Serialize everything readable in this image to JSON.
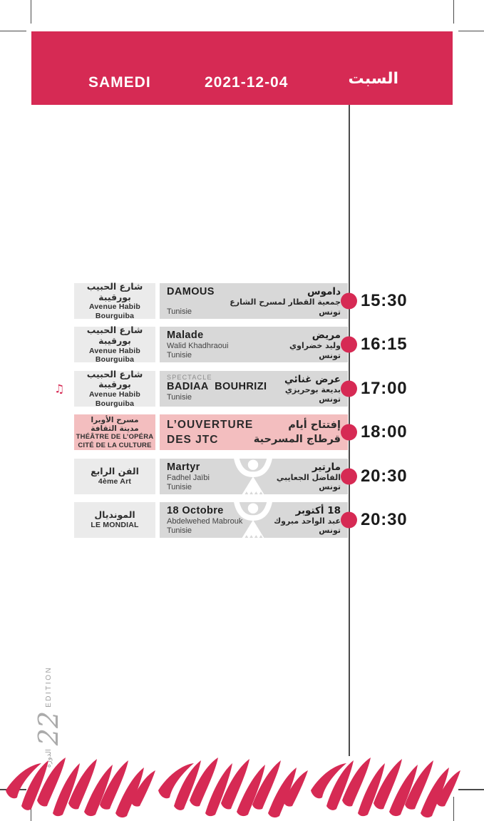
{
  "header": {
    "day_fr": "SAMEDI",
    "date": "2021-12-04",
    "day_ar": "السبت"
  },
  "edition": {
    "label_ar": "الدورة",
    "number": "22",
    "label_fr": "EDITION"
  },
  "icons": {
    "music_note": "♫",
    "timeline_dot": "red-dot",
    "watermark": "jtc-figure-logo"
  },
  "colors": {
    "crimson": "#D62A54",
    "highlight_pink": "#F3BEBF",
    "event_gray": "#D8D8D8",
    "venue_gray": "#EBEBEB"
  },
  "events": [
    {
      "time": "15:30",
      "music_icon": false,
      "highlight": false,
      "logo_watermark": false,
      "venue": {
        "ar": [
          "شارع الحبيب بورقيبة"
        ],
        "fr": [
          "Avenue Habib Bourguiba"
        ]
      },
      "latin": {
        "overline": "",
        "title": [
          "DAMOUS"
        ],
        "author": "",
        "country": "Tunisie"
      },
      "arabic": {
        "title": [
          "داموس"
        ],
        "author": "جمعية القطار لمسرح الشارع",
        "country": "تونس"
      }
    },
    {
      "time": "16:15",
      "music_icon": false,
      "highlight": false,
      "logo_watermark": false,
      "venue": {
        "ar": [
          "شارع الحبيب بورقيبة"
        ],
        "fr": [
          "Avenue Habib Bourguiba"
        ]
      },
      "latin": {
        "overline": "",
        "title": [
          "Malade"
        ],
        "author": "Walid Khadhraoui",
        "country": "Tunisie"
      },
      "arabic": {
        "title": [
          "مريض"
        ],
        "author": "وليد خضراوي",
        "country": "تونس"
      }
    },
    {
      "time": "17:00",
      "music_icon": true,
      "highlight": false,
      "logo_watermark": false,
      "venue": {
        "ar": [
          "شارع الحبيب بورقيبة"
        ],
        "fr": [
          "Avenue Habib Bourguiba"
        ]
      },
      "latin": {
        "overline": "SPECTACLE",
        "title": [
          "BADIAA  BOUHRIZI"
        ],
        "author": "",
        "country": "Tunisie"
      },
      "arabic": {
        "title": [
          "عرض غنائي"
        ],
        "author": "بديعة بوحريزي",
        "country": "تونس"
      }
    },
    {
      "time": "18:00",
      "music_icon": false,
      "highlight": true,
      "logo_watermark": false,
      "venue": {
        "ar": [
          "مسرح الأوبرا",
          "مدينة الثقافة"
        ],
        "fr": [
          "THÉÂTRE DE L’OPÉRA",
          "CITÉ DE LA CULTURE"
        ]
      },
      "latin": {
        "overline": "",
        "title": [
          "L’OUVERTURE",
          "DES JTC"
        ],
        "author": "",
        "country": ""
      },
      "arabic": {
        "title": [
          "إفتتاح أيام",
          "قرطاج المسرحية"
        ],
        "author": "",
        "country": ""
      }
    },
    {
      "time": "20:30",
      "music_icon": false,
      "highlight": false,
      "logo_watermark": true,
      "venue": {
        "ar": [
          "الفن الرابع"
        ],
        "fr": [
          "4ème Art"
        ]
      },
      "latin": {
        "overline": "",
        "title": [
          "Martyr"
        ],
        "author": "Fadhel Jaïbi",
        "country": "Tunisie"
      },
      "arabic": {
        "title": [
          "مارتير"
        ],
        "author": "الفاضل الجعايبي",
        "country": "تونس"
      }
    },
    {
      "time": "20:30",
      "music_icon": false,
      "highlight": false,
      "logo_watermark": true,
      "venue": {
        "ar": [
          "المونديال"
        ],
        "fr": [
          "LE MONDIAL"
        ]
      },
      "latin": {
        "overline": "",
        "title": [
          "18 Octobre"
        ],
        "author": "Abdelwehed Mabrouk",
        "country": "Tunisie"
      },
      "arabic": {
        "title": [
          "18 أكتوبر"
        ],
        "author": "عبد الواحد مبروك",
        "country": "تونس"
      }
    }
  ]
}
